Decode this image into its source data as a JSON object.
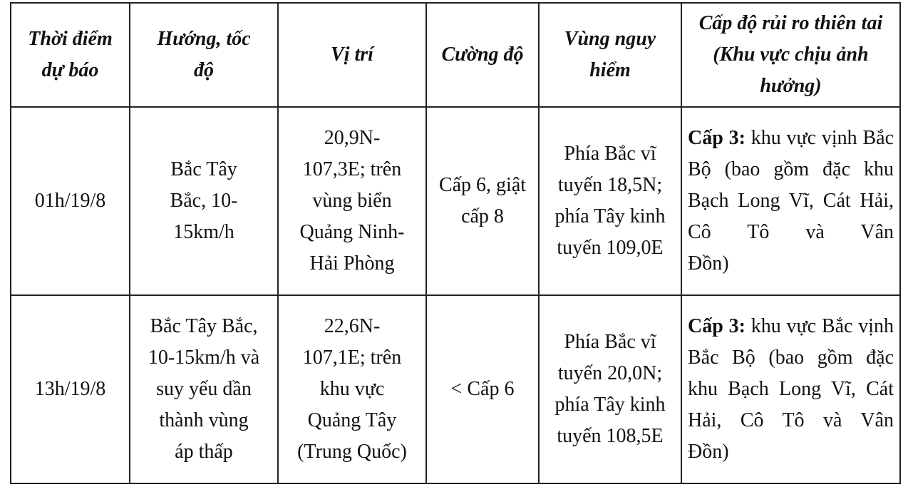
{
  "headers": [
    "Thời điểm dự báo",
    "Hướng, tốc độ",
    "Vị trí",
    "Cường độ",
    "Vùng nguy hiểm",
    "Cấp độ rủi ro thiên tai (Khu vực chịu ảnh hưởng)"
  ],
  "rows": [
    {
      "time": "01h/19/8",
      "direction": "Bắc Tây Bắc, 10-15km/h",
      "position": "20,9N-107,3E; trên vùng biển Quảng Ninh-Hải Phòng",
      "intensity": "Cấp 6, giật cấp 8",
      "danger_zone": "Phía Bắc vĩ tuyến 18,5N; phía Tây kinh tuyến 109,0E",
      "risk_level": "Cấp 3:",
      "risk_area": "khu vực vịnh Bắc Bộ (bao gồm đặc khu Bạch Long Vĩ, Cát Hải, Cô Tô và Vân",
      "risk_area_end": "Đồn)"
    },
    {
      "time": "13h/19/8",
      "direction": "Bắc Tây Bắc, 10-15km/h và suy yếu dần thành vùng áp thấp",
      "position": "22,6N-107,1E; trên khu vực Quảng Tây (Trung Quốc)",
      "intensity": "< Cấp 6",
      "danger_zone": "Phía Bắc vĩ tuyến 20,0N; phía Tây kinh tuyến 108,5E",
      "risk_level": "Cấp 3:",
      "risk_area": "khu vực Bắc vịnh Bắc Bộ (bao gồm đặc khu Bạch Long Vĩ, Cát Hải, Cô Tô và Vân",
      "risk_area_end": "Đồn)"
    }
  ]
}
